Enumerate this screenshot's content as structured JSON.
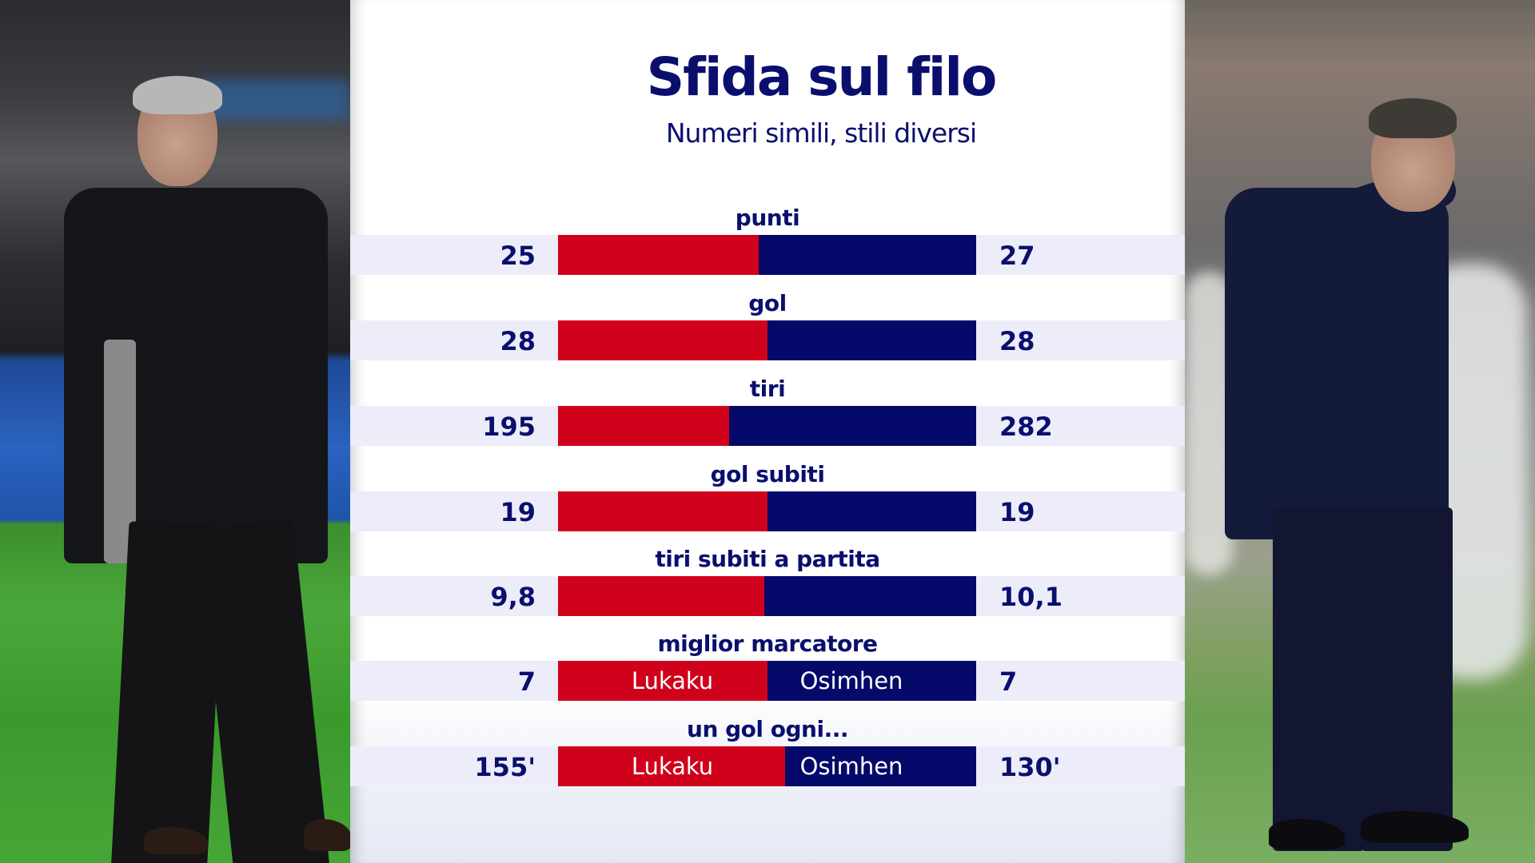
{
  "header": {
    "title": "Sfida sul filo",
    "subtitle": "Numeri simili, stili diversi"
  },
  "colors": {
    "left_team": "#d0021b",
    "right_team": "#05096a",
    "text": "#0a0f6e",
    "band": "#ecedf8"
  },
  "photos": {
    "left": "coach-left-photo",
    "right": "coach-right-photo"
  },
  "rows": [
    {
      "label": "punti",
      "left": "25",
      "right": "27",
      "left_value": 25,
      "right_value": 27
    },
    {
      "label": "gol",
      "left": "28",
      "right": "28",
      "left_value": 28,
      "right_value": 28
    },
    {
      "label": "tiri",
      "left": "195",
      "right": "282",
      "left_value": 195,
      "right_value": 282
    },
    {
      "label": "gol subiti",
      "left": "19",
      "right": "19",
      "left_value": 19,
      "right_value": 19
    },
    {
      "label": "tiri subiti a partita",
      "left": "9,8",
      "right": "10,1",
      "left_value": 9.8,
      "right_value": 10.1
    },
    {
      "label": "miglior marcatore",
      "left": "7",
      "right": "7",
      "left_value": 7,
      "right_value": 7,
      "left_name": "Lukaku",
      "right_name": "Osimhen"
    },
    {
      "label": "un gol ogni...",
      "left": "155'",
      "right": "130'",
      "left_value": 155,
      "right_value": 130,
      "left_name": "Lukaku",
      "right_name": "Osimhen"
    }
  ],
  "chart_data": {
    "type": "bar",
    "title": "Sfida sul filo",
    "subtitle": "Numeri simili, stili diversi",
    "orientation": "horizontal-diverging-stacked",
    "categories": [
      "punti",
      "gol",
      "tiri",
      "gol subiti",
      "tiri subiti a partita",
      "miglior marcatore",
      "un gol ogni..."
    ],
    "series": [
      {
        "name": "left (red)",
        "color": "#d0021b",
        "values": [
          25,
          28,
          195,
          19,
          9.8,
          7,
          155
        ]
      },
      {
        "name": "right (blue)",
        "color": "#05096a",
        "values": [
          27,
          28,
          282,
          19,
          10.1,
          7,
          130
        ]
      }
    ],
    "annotations": [
      {
        "category": "miglior marcatore",
        "left": "Lukaku",
        "right": "Osimhen"
      },
      {
        "category": "un gol ogni...",
        "left": "Lukaku",
        "right": "Osimhen",
        "unit": "'"
      }
    ],
    "xlabel": "",
    "ylabel": "",
    "grid": false,
    "legend": "none"
  }
}
